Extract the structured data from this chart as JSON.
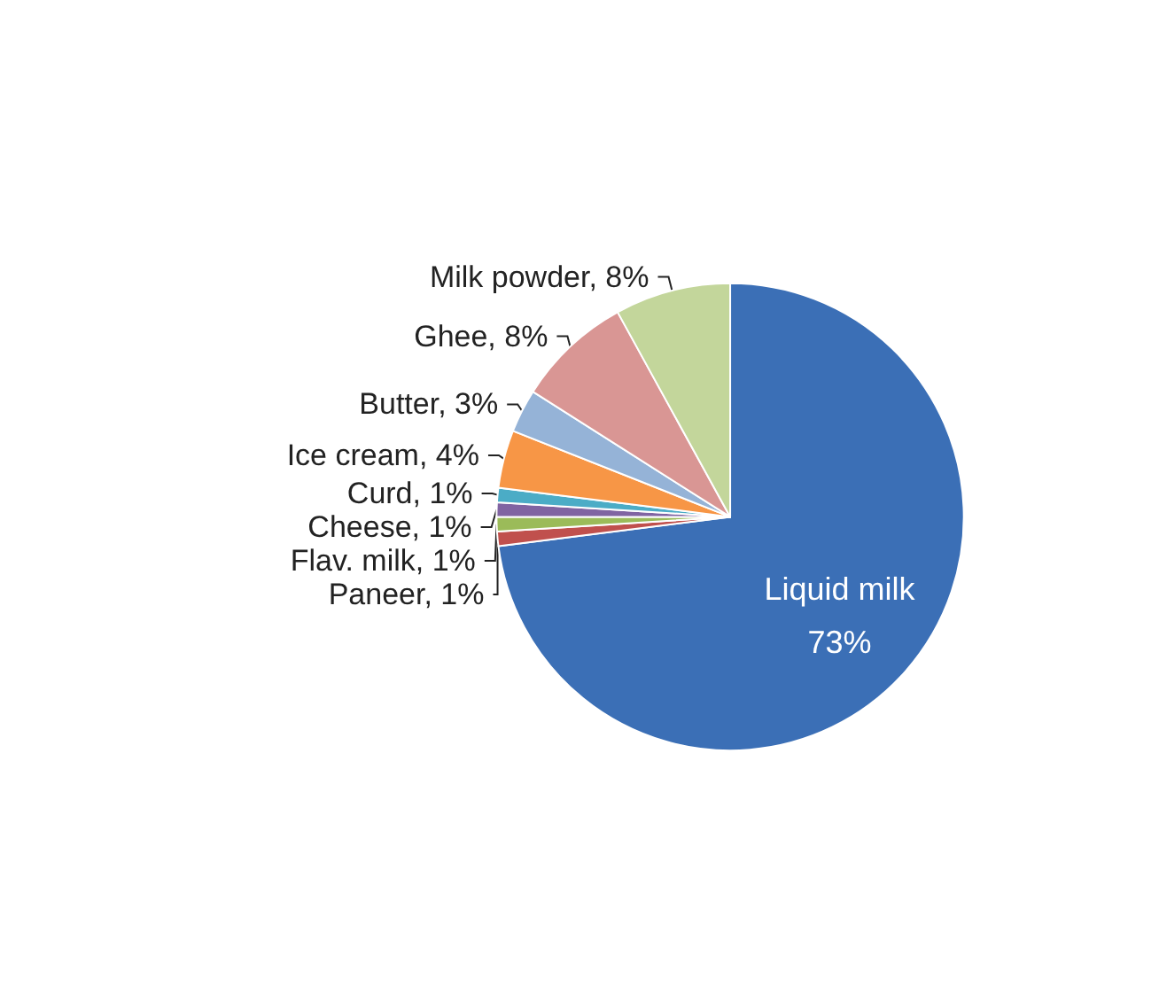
{
  "chart_data": {
    "type": "pie",
    "categories": [
      "Liquid milk",
      "Paneer",
      "Flav. milk",
      "Cheese",
      "Curd",
      "Ice cream",
      "Butter",
      "Ghee",
      "Milk powder"
    ],
    "values": [
      73,
      1,
      1,
      1,
      1,
      4,
      3,
      8,
      8
    ],
    "value_labels": [
      "73%",
      "1%",
      "1%",
      "1%",
      "1%",
      "4%",
      "3%",
      "8%",
      "8%"
    ],
    "colors": [
      "#3b6fb6",
      "#c0504d",
      "#9bbb59",
      "#8064a2",
      "#4bacc6",
      "#f79646",
      "#95b3d7",
      "#d99694",
      "#c3d69b"
    ]
  }
}
